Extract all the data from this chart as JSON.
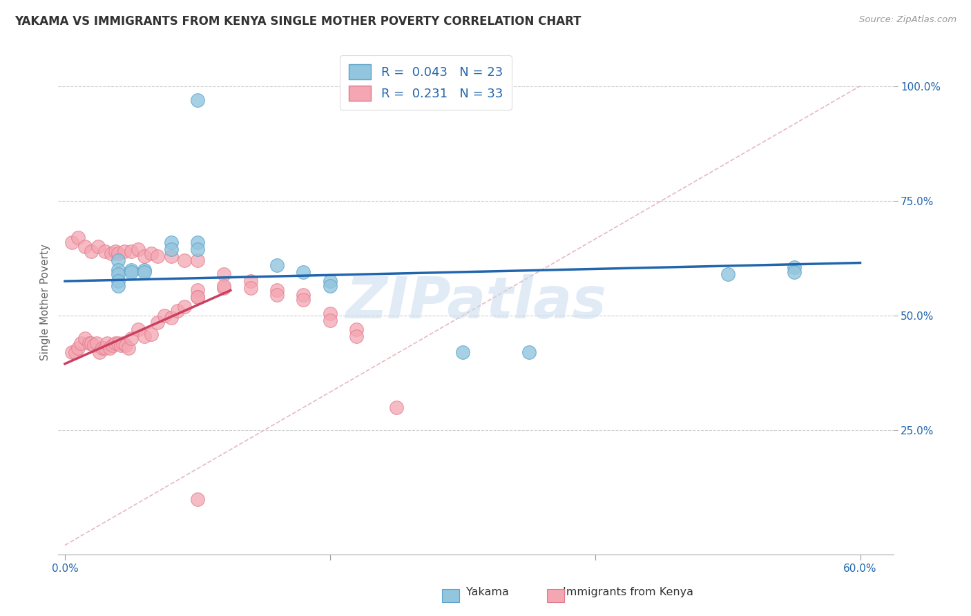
{
  "title": "YAKAMA VS IMMIGRANTS FROM KENYA SINGLE MOTHER POVERTY CORRELATION CHART",
  "source": "Source: ZipAtlas.com",
  "ylabel": "Single Mother Poverty",
  "xlabel1": "Yakama",
  "xlabel2": "Immigrants from Kenya",
  "xlim": [
    -0.005,
    0.625
  ],
  "ylim": [
    -0.02,
    1.08
  ],
  "xtick_vals": [
    0.0,
    0.2,
    0.4,
    0.6
  ],
  "xtick_labels_show": [
    "0.0%",
    "",
    "",
    "60.0%"
  ],
  "ytick_vals": [
    0.25,
    0.5,
    0.75,
    1.0
  ],
  "ytick_labels": [
    "25.0%",
    "50.0%",
    "75.0%",
    "100.0%"
  ],
  "color_blue": "#92C5DE",
  "color_blue_edge": "#5BA3CC",
  "color_pink": "#F4A6B2",
  "color_pink_edge": "#E07A8A",
  "line_blue": "#2166AC",
  "line_pink": "#C94060",
  "diag_color": "#E8B8C0",
  "grid_color": "#CCCCCC",
  "tick_color": "#2166AC",
  "watermark_color": "#C8DCF0",
  "legend_r1": "R =  0.043   N = 23",
  "legend_r2": "R =  0.231   N = 33",
  "yakama_x": [
    0.1,
    0.04,
    0.04,
    0.04,
    0.04,
    0.04,
    0.05,
    0.05,
    0.06,
    0.06,
    0.08,
    0.08,
    0.1,
    0.1,
    0.16,
    0.18,
    0.2,
    0.2,
    0.3,
    0.35,
    0.5,
    0.55,
    0.55
  ],
  "yakama_y": [
    0.97,
    0.62,
    0.6,
    0.59,
    0.575,
    0.565,
    0.6,
    0.595,
    0.6,
    0.595,
    0.66,
    0.645,
    0.66,
    0.645,
    0.61,
    0.595,
    0.575,
    0.565,
    0.42,
    0.42,
    0.59,
    0.605,
    0.595
  ],
  "kenya_x": [
    0.005,
    0.008,
    0.01,
    0.012,
    0.015,
    0.018,
    0.02,
    0.022,
    0.024,
    0.026,
    0.028,
    0.03,
    0.032,
    0.034,
    0.036,
    0.038,
    0.04,
    0.042,
    0.044,
    0.046,
    0.048,
    0.05,
    0.055,
    0.06,
    0.065,
    0.07,
    0.075,
    0.08,
    0.085,
    0.09,
    0.1,
    0.1,
    0.12
  ],
  "kenya_y": [
    0.42,
    0.42,
    0.43,
    0.44,
    0.45,
    0.44,
    0.44,
    0.435,
    0.44,
    0.42,
    0.43,
    0.43,
    0.44,
    0.43,
    0.435,
    0.44,
    0.44,
    0.435,
    0.44,
    0.435,
    0.43,
    0.45,
    0.47,
    0.455,
    0.46,
    0.485,
    0.5,
    0.495,
    0.51,
    0.52,
    0.555,
    0.54,
    0.56
  ],
  "kenya_extra_x": [
    0.005,
    0.01,
    0.015,
    0.02,
    0.025,
    0.03,
    0.035,
    0.038,
    0.04,
    0.045,
    0.05,
    0.055,
    0.06,
    0.065,
    0.07,
    0.08,
    0.09,
    0.1,
    0.12,
    0.14,
    0.16,
    0.18,
    0.2,
    0.22,
    0.1,
    0.12,
    0.14,
    0.16,
    0.18,
    0.2,
    0.22,
    0.25,
    0.1
  ],
  "kenya_extra_y": [
    0.66,
    0.67,
    0.65,
    0.64,
    0.65,
    0.64,
    0.635,
    0.64,
    0.635,
    0.64,
    0.64,
    0.645,
    0.63,
    0.635,
    0.63,
    0.63,
    0.62,
    0.62,
    0.59,
    0.575,
    0.555,
    0.545,
    0.505,
    0.47,
    0.54,
    0.565,
    0.56,
    0.545,
    0.535,
    0.49,
    0.455,
    0.3,
    0.1
  ],
  "blue_line_x": [
    0.0,
    0.6
  ],
  "blue_line_y": [
    0.575,
    0.615
  ],
  "pink_line_x": [
    0.0,
    0.125
  ],
  "pink_line_y": [
    0.395,
    0.555
  ],
  "diag_line_x": [
    0.0,
    0.6
  ],
  "diag_line_y": [
    0.0,
    1.0
  ]
}
